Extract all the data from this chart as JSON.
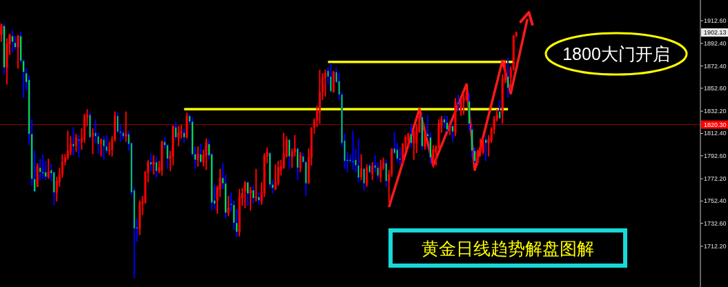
{
  "chart_data": {
    "type": "candlestick",
    "categories": [
      null,
      null,
      null,
      null,
      null,
      null,
      null,
      null,
      null,
      null,
      null,
      null,
      null,
      null,
      null,
      null,
      null,
      null,
      null,
      null,
      null,
      null,
      null,
      null,
      null,
      null,
      null,
      null,
      null,
      null,
      null,
      null,
      null,
      null,
      null,
      null,
      null,
      null,
      null,
      null,
      null,
      null,
      null,
      null,
      null,
      null,
      null,
      null,
      null,
      null,
      null,
      null,
      null,
      null,
      null,
      null,
      null,
      null,
      null,
      null,
      null,
      null,
      null,
      null,
      null,
      null,
      null,
      null,
      null,
      null,
      null,
      null,
      null,
      null,
      null,
      null,
      null,
      null,
      null,
      null,
      null,
      null,
      null,
      null,
      null,
      null,
      null,
      null,
      null,
      null,
      null,
      null,
      null,
      null,
      null,
      null,
      null,
      null,
      null,
      null,
      null,
      null,
      null,
      null,
      null,
      null,
      null,
      null,
      null,
      null,
      null,
      null,
      null,
      null,
      null,
      null,
      null,
      null,
      null,
      null,
      null,
      null,
      null,
      null,
      null,
      null,
      null,
      null,
      null,
      null,
      null,
      null,
      null,
      null,
      null,
      null,
      null,
      null,
      null,
      null,
      null,
      null,
      null,
      null,
      null,
      null,
      null,
      null,
      null,
      null,
      null,
      null,
      null,
      null,
      null,
      null,
      null,
      null,
      null,
      null,
      null,
      null,
      null,
      null,
      null,
      null,
      null,
      null,
      null,
      null,
      null,
      null,
      null,
      null,
      null,
      null,
      null,
      null,
      null,
      null,
      null,
      null,
      null,
      null,
      null,
      null,
      null,
      null,
      null,
      null,
      null,
      null,
      null,
      null,
      null,
      null,
      null,
      null,
      null,
      null,
      null,
      null,
      null,
      null,
      null,
      null,
      null,
      null,
      null,
      null,
      null,
      null,
      null,
      null,
      null,
      null,
      null,
      null,
      null,
      null,
      null,
      null,
      null,
      null,
      null,
      null,
      null,
      null,
      null,
      null,
      null,
      null,
      null,
      null,
      null,
      null,
      null,
      null,
      null,
      null,
      null,
      null,
      null,
      null,
      null,
      null,
      null,
      null,
      null,
      null,
      null,
      null,
      null
    ],
    "ohlc": [
      [
        1900,
        1910,
        1894,
        1909
      ],
      [
        1908,
        1910,
        1865,
        1871
      ],
      [
        1871,
        1897,
        1856,
        1892
      ],
      [
        1892,
        1901,
        1882,
        1900
      ],
      [
        1899,
        1904,
        1884,
        1894
      ],
      [
        1893,
        1899,
        1887,
        1889
      ],
      [
        1889,
        1900,
        1870,
        1899
      ],
      [
        1899,
        1903,
        1875,
        1877
      ],
      [
        1877,
        1878,
        1844,
        1867
      ],
      [
        1866,
        1870,
        1851,
        1858
      ],
      [
        1860,
        1864,
        1802,
        1812
      ],
      [
        1812,
        1825,
        1766,
        1772
      ],
      [
        1772,
        1797,
        1760,
        1761
      ],
      [
        1765,
        1786,
        1765,
        1783
      ],
      [
        1782,
        1790,
        1771,
        1778
      ],
      [
        1778,
        1794,
        1772,
        1777
      ],
      [
        1778,
        1788,
        1771,
        1774
      ],
      [
        1774,
        1790,
        1772,
        1778
      ],
      [
        1780,
        1785,
        1770,
        1777
      ],
      [
        1778,
        1778,
        1749,
        1760
      ],
      [
        1760,
        1774,
        1752,
        1770
      ],
      [
        1769,
        1782,
        1765,
        1776
      ],
      [
        1776,
        1794,
        1773,
        1787
      ],
      [
        1787,
        1794,
        1784,
        1791
      ],
      [
        1791,
        1815,
        1789,
        1797
      ],
      [
        1796,
        1810,
        1793,
        1803
      ],
      [
        1803,
        1818,
        1793,
        1801
      ],
      [
        1802,
        1812,
        1796,
        1808
      ],
      [
        1807,
        1811,
        1791,
        1806
      ],
      [
        1805,
        1817,
        1798,
        1808
      ],
      [
        1807,
        1830,
        1804,
        1828
      ],
      [
        1827,
        1834,
        1819,
        1829
      ],
      [
        1829,
        1832,
        1808,
        1809
      ],
      [
        1810,
        1817,
        1794,
        1813
      ],
      [
        1813,
        1825,
        1804,
        1810
      ],
      [
        1810,
        1813,
        1794,
        1803
      ],
      [
        1803,
        1808,
        1792,
        1807
      ],
      [
        1807,
        1810,
        1789,
        1801
      ],
      [
        1801,
        1811,
        1795,
        1797
      ],
      [
        1797,
        1805,
        1793,
        1798
      ],
      [
        1798,
        1810,
        1792,
        1807
      ],
      [
        1807,
        1832,
        1805,
        1828
      ],
      [
        1828,
        1831,
        1813,
        1814
      ],
      [
        1814,
        1820,
        1805,
        1813
      ],
      [
        1813,
        1815,
        1807,
        1810
      ],
      [
        1810,
        1832,
        1805,
        1812
      ],
      [
        1812,
        1815,
        1797,
        1803
      ],
      [
        1804,
        1804,
        1758,
        1760
      ],
      [
        1762,
        1764,
        1684,
        1728
      ],
      [
        1729,
        1737,
        1716,
        1728
      ],
      [
        1728,
        1753,
        1722,
        1751
      ],
      [
        1750,
        1757,
        1740,
        1752
      ],
      [
        1751,
        1779,
        1750,
        1778
      ],
      [
        1778,
        1789,
        1769,
        1787
      ],
      [
        1787,
        1795,
        1779,
        1785
      ],
      [
        1785,
        1793,
        1776,
        1787
      ],
      [
        1787,
        1792,
        1773,
        1779
      ],
      [
        1779,
        1788,
        1777,
        1782
      ],
      [
        1780,
        1806,
        1775,
        1805
      ],
      [
        1805,
        1809,
        1799,
        1802
      ],
      [
        1802,
        1803,
        1781,
        1790
      ],
      [
        1790,
        1797,
        1779,
        1792
      ],
      [
        1792,
        1819,
        1784,
        1819
      ],
      [
        1818,
        1823,
        1807,
        1809
      ],
      [
        1809,
        1819,
        1801,
        1813
      ],
      [
        1813,
        1820,
        1808,
        1814
      ],
      [
        1813,
        1817,
        1804,
        1809
      ],
      [
        1809,
        1831,
        1808,
        1828
      ],
      [
        1828,
        1830,
        1821,
        1823
      ],
      [
        1823,
        1827,
        1792,
        1794
      ],
      [
        1794,
        1801,
        1781,
        1789
      ],
      [
        1789,
        1801,
        1783,
        1794
      ],
      [
        1794,
        1803,
        1786,
        1787
      ],
      [
        1787,
        1798,
        1783,
        1793
      ],
      [
        1793,
        1808,
        1780,
        1804
      ],
      [
        1803,
        1807,
        1790,
        1793
      ],
      [
        1794,
        1795,
        1744,
        1751
      ],
      [
        1753,
        1767,
        1745,
        1750
      ],
      [
        1753,
        1766,
        1741,
        1764
      ],
      [
        1763,
        1781,
        1756,
        1773
      ],
      [
        1773,
        1786,
        1763,
        1768
      ],
      [
        1768,
        1776,
        1737,
        1742
      ],
      [
        1742,
        1757,
        1739,
        1746
      ],
      [
        1750,
        1760,
        1743,
        1749
      ],
      [
        1749,
        1753,
        1727,
        1733
      ],
      [
        1733,
        1745,
        1720,
        1725
      ],
      [
        1725,
        1763,
        1721,
        1756
      ],
      [
        1755,
        1764,
        1748,
        1759
      ],
      [
        1761,
        1770,
        1746,
        1769
      ],
      [
        1769,
        1770,
        1748,
        1759
      ],
      [
        1759,
        1765,
        1744,
        1762
      ],
      [
        1762,
        1766,
        1750,
        1755
      ],
      [
        1755,
        1781,
        1752,
        1756
      ],
      [
        1756,
        1760,
        1749,
        1753
      ],
      [
        1752,
        1769,
        1749,
        1760
      ],
      [
        1759,
        1795,
        1756,
        1793
      ],
      [
        1792,
        1800,
        1786,
        1796
      ],
      [
        1795,
        1796,
        1764,
        1767
      ],
      [
        1767,
        1771,
        1759,
        1764
      ],
      [
        1763,
        1785,
        1762,
        1769
      ],
      [
        1768,
        1788,
        1766,
        1782
      ],
      [
        1780,
        1789,
        1775,
        1783
      ],
      [
        1782,
        1813,
        1781,
        1794
      ],
      [
        1792,
        1810,
        1791,
        1807
      ],
      [
        1807,
        1807,
        1781,
        1792
      ],
      [
        1792,
        1799,
        1782,
        1796
      ],
      [
        1796,
        1811,
        1792,
        1799
      ],
      [
        1799,
        1800,
        1771,
        1782
      ],
      [
        1782,
        1796,
        1778,
        1793
      ],
      [
        1792,
        1795,
        1786,
        1787
      ],
      [
        1787,
        1788,
        1757,
        1768
      ],
      [
        1768,
        1799,
        1768,
        1791
      ],
      [
        1791,
        1818,
        1784,
        1817
      ],
      [
        1818,
        1826,
        1812,
        1824
      ],
      [
        1824,
        1837,
        1818,
        1832
      ],
      [
        1831,
        1869,
        1821,
        1849
      ],
      [
        1849,
        1866,
        1842,
        1862
      ],
      [
        1862,
        1869,
        1845,
        1866
      ],
      [
        1868,
        1871,
        1856,
        1863
      ],
      [
        1863,
        1875,
        1849,
        1850
      ],
      [
        1849,
        1868,
        1849,
        1867
      ],
      [
        1867,
        1871,
        1857,
        1858
      ],
      [
        1859,
        1866,
        1842,
        1847
      ],
      [
        1847,
        1849,
        1801,
        1804
      ],
      [
        1806,
        1812,
        1781,
        1788
      ],
      [
        1789,
        1796,
        1778,
        1788
      ],
      [
        1789,
        1794,
        1786,
        1788
      ],
      [
        1788,
        1815,
        1780,
        1787
      ],
      [
        1789,
        1799,
        1778,
        1784
      ],
      [
        1784,
        1808,
        1769,
        1773
      ],
      [
        1774,
        1794,
        1771,
        1781
      ],
      [
        1781,
        1782,
        1761,
        1768
      ],
      [
        1767,
        1785,
        1765,
        1782
      ],
      [
        1784,
        1786,
        1777,
        1778
      ],
      [
        1777,
        1787,
        1771,
        1783
      ],
      [
        1784,
        1793,
        1778,
        1782
      ],
      [
        1782,
        1787,
        1772,
        1775
      ],
      [
        1774,
        1789,
        1769,
        1782
      ],
      [
        1782,
        1791,
        1780,
        1786
      ],
      [
        1786,
        1789,
        1765,
        1770
      ],
      [
        1770,
        1780,
        1751,
        1776
      ],
      [
        1777,
        1799,
        1774,
        1799
      ],
      [
        1799,
        1814,
        1794,
        1795
      ],
      [
        1798,
        1804,
        1787,
        1790
      ],
      [
        1790,
        1800,
        1784,
        1789
      ],
      [
        1788,
        1804,
        1785,
        1803
      ],
      [
        1803,
        1811,
        1798,
        1809
      ],
      [
        1807,
        1813,
        1801,
        1812
      ],
      [
        1812,
        1820,
        1800,
        1804
      ],
      [
        1804,
        1815,
        1789,
        1815
      ],
      [
        1804,
        1821,
        1795,
        1817
      ],
      [
        1814,
        1829,
        1813,
        1828
      ],
      [
        1827,
        1829,
        1798,
        1801
      ],
      [
        1801,
        1815,
        1798,
        1814
      ],
      [
        1812,
        1829,
        1809,
        1810
      ],
      [
        1809,
        1813,
        1786,
        1791
      ],
      [
        1791,
        1802,
        1782,
        1798
      ],
      [
        1796,
        1802,
        1784,
        1800
      ],
      [
        1800,
        1825,
        1799,
        1821
      ],
      [
        1820,
        1828,
        1813,
        1825
      ],
      [
        1825,
        1828,
        1817,
        1822
      ],
      [
        1822,
        1828,
        1814,
        1816
      ],
      [
        1817,
        1823,
        1811,
        1819
      ],
      [
        1819,
        1821,
        1805,
        1814
      ],
      [
        1813,
        1844,
        1810,
        1840
      ],
      [
        1840,
        1847,
        1832,
        1839
      ],
      [
        1833,
        1843,
        1828,
        1841
      ],
      [
        1841,
        1848,
        1829,
        1844
      ],
      [
        1843,
        1852,
        1842,
        1848
      ],
      [
        1841,
        1848,
        1815,
        1821
      ],
      [
        1816,
        1819,
        1791,
        1797
      ],
      [
        1797,
        1800,
        1786,
        1788
      ],
      [
        1786,
        1798,
        1784,
        1796
      ],
      [
        1796,
        1808,
        1792,
        1799
      ],
      [
        1796,
        1808,
        1794,
        1804
      ],
      [
        1807,
        1810,
        1788,
        1804
      ],
      [
        1804,
        1811,
        1792,
        1807
      ],
      [
        1806,
        1818,
        1804,
        1816
      ],
      [
        1816,
        1828,
        1812,
        1825
      ],
      [
        1825,
        1834,
        1823,
        1829
      ],
      [
        1832,
        1842,
        1825,
        1826
      ],
      [
        1831,
        1865,
        1821,
        1861
      ],
      [
        1861,
        1878,
        1857,
        1869
      ],
      [
        1863,
        1880,
        1844,
        1853
      ],
      [
        1862,
        1872,
        1851,
        1870
      ],
      [
        1870,
        1900,
        1868,
        1899
      ],
      [
        1899,
        1903,
        1898,
        1902.13
      ],
      null,
      null,
      null,
      null,
      null,
      null,
      null,
      null,
      null,
      null,
      null,
      null,
      null,
      null,
      null,
      null,
      null,
      null,
      null,
      null,
      null,
      null,
      null,
      null,
      null,
      null,
      null,
      null,
      null,
      null,
      null,
      null,
      null,
      null,
      null,
      null,
      null,
      null,
      null,
      null,
      null,
      null,
      null,
      null,
      null,
      null,
      null,
      null,
      null,
      null,
      null,
      null,
      null,
      null,
      null,
      null,
      null,
      null,
      null,
      null,
      null,
      null,
      null,
      null,
      null,
      null
    ],
    "series": [
      {
        "type": "line",
        "color": "#ffff00",
        "values": [
          null,
          null,
          null,
          null,
          null,
          null,
          null,
          null,
          null,
          null,
          null,
          null,
          null,
          null,
          null,
          null,
          null,
          null,
          null,
          null,
          null,
          null,
          null,
          null,
          null,
          null,
          null,
          null,
          null,
          null,
          null,
          null,
          null,
          null,
          null,
          null,
          null,
          null,
          null,
          null,
          null,
          null,
          null,
          null,
          null,
          null,
          null,
          null,
          null,
          null,
          null,
          null,
          null,
          null,
          null,
          null,
          null,
          null,
          null,
          null,
          null,
          null,
          null,
          null,
          null,
          null,
          1834,
          1834,
          1834,
          1834,
          1834,
          1834,
          1834,
          1834,
          1834,
          1834,
          1834,
          1834,
          1834,
          1834,
          1834,
          1834,
          1834,
          1834,
          1834,
          1834,
          1834,
          1834,
          1834,
          1834,
          1834,
          1834,
          1834,
          1834,
          1834,
          1834,
          1834,
          1834,
          1834,
          1834,
          1834,
          1834,
          1834,
          1834,
          1834,
          1834,
          1834,
          1834,
          1834,
          1834,
          1834,
          1834,
          1834,
          1834,
          1834,
          1834,
          1834,
          1834,
          1834,
          1834,
          1834,
          1834,
          1834,
          1834,
          1834,
          1834,
          1834,
          1834,
          1834,
          1834,
          1834,
          1834,
          1834,
          1834,
          1834,
          1834,
          1834,
          1834,
          1834,
          1834,
          1834,
          1834,
          1834,
          1834,
          1834,
          1834,
          1834,
          1834,
          1834,
          1834,
          1834,
          1834,
          1834,
          1834,
          1834,
          1834,
          1834,
          1834,
          1834,
          1834,
          1834,
          1834,
          1834,
          1834,
          1834,
          1834,
          1834,
          1834,
          1834,
          1834,
          1834,
          1834,
          1834,
          1834,
          1834,
          1834,
          1834,
          1834,
          1834,
          1834,
          1834,
          1834,
          1834,
          1834,
          null,
          null,
          null,
          null,
          null,
          null,
          null,
          null,
          null,
          null,
          null,
          null,
          null,
          null,
          null,
          null,
          null,
          null,
          null,
          null,
          null,
          null,
          null,
          null,
          null,
          null,
          null,
          null,
          null,
          null,
          null,
          null,
          null,
          null,
          null,
          null,
          null,
          null,
          null,
          null,
          null,
          null,
          null,
          null,
          null,
          null,
          null,
          null,
          null,
          null,
          null,
          null,
          null,
          null,
          null,
          null,
          null,
          null,
          null,
          null,
          null,
          null,
          null,
          null,
          null,
          null,
          null,
          null,
          null
        ]
      },
      {
        "type": "line",
        "color": "#ffff00",
        "values": [
          null,
          null,
          null,
          null,
          null,
          null,
          null,
          null,
          null,
          null,
          null,
          null,
          null,
          null,
          null,
          null,
          null,
          null,
          null,
          null,
          null,
          null,
          null,
          null,
          null,
          null,
          null,
          null,
          null,
          null,
          null,
          null,
          null,
          null,
          null,
          null,
          null,
          null,
          null,
          null,
          null,
          null,
          null,
          null,
          null,
          null,
          null,
          null,
          null,
          null,
          null,
          null,
          null,
          null,
          null,
          null,
          null,
          null,
          null,
          null,
          null,
          null,
          null,
          null,
          null,
          null,
          null,
          null,
          null,
          null,
          null,
          null,
          null,
          null,
          null,
          null,
          null,
          null,
          null,
          null,
          null,
          null,
          null,
          null,
          null,
          null,
          null,
          null,
          null,
          null,
          null,
          null,
          null,
          null,
          null,
          null,
          null,
          null,
          null,
          null,
          null,
          null,
          null,
          null,
          null,
          null,
          null,
          null,
          null,
          null,
          null,
          null,
          null,
          null,
          null,
          null,
          null,
          null,
          1876,
          1876,
          1876,
          1876,
          1876,
          1876,
          1876,
          1876,
          1876,
          1876,
          1876,
          1876,
          1876,
          1876,
          1876,
          1876,
          1876,
          1876,
          1876,
          1876,
          1876,
          1876,
          1876,
          1876,
          1876,
          1876,
          1876,
          1876,
          1876,
          1876,
          1876,
          1876,
          1876,
          1876,
          1876,
          1876,
          1876,
          1876,
          1876,
          1876,
          1876,
          1876,
          1876,
          1876,
          1876,
          1876,
          1876,
          1876,
          1876,
          1876,
          1876,
          1876,
          1876,
          1876,
          1876,
          1876,
          1876,
          1876,
          1876,
          1876,
          1876,
          1876,
          1876,
          1876,
          1876,
          1876,
          1876,
          1876,
          null,
          null,
          null,
          null,
          null,
          null,
          null,
          null,
          null,
          null,
          null,
          null,
          null,
          null,
          null,
          null,
          null,
          null,
          null,
          null,
          null,
          null,
          null,
          null,
          null,
          null,
          null,
          null,
          null,
          null,
          null,
          null,
          null,
          null,
          null,
          null,
          null,
          null,
          null,
          null,
          null,
          null,
          null,
          null,
          null,
          null,
          null,
          null,
          null,
          null,
          null,
          null,
          null,
          null,
          null,
          null,
          null,
          null,
          null,
          null,
          null,
          null,
          null,
          null,
          null,
          null,
          null
        ]
      },
      {
        "type": "line",
        "color": "#ff1a1a",
        "values": [
          null,
          null,
          null,
          null,
          null,
          null,
          null,
          null,
          null,
          null,
          null,
          null,
          null,
          null,
          null,
          null,
          null,
          null,
          null,
          null,
          null,
          null,
          null,
          null,
          null,
          null,
          null,
          null,
          null,
          null,
          null,
          null,
          null,
          null,
          null,
          null,
          null,
          null,
          null,
          null,
          null,
          null,
          null,
          null,
          null,
          null,
          null,
          null,
          null,
          null,
          null,
          null,
          null,
          null,
          null,
          null,
          null,
          null,
          null,
          null,
          null,
          null,
          null,
          null,
          null,
          null,
          null,
          null,
          null,
          null,
          null,
          null,
          null,
          null,
          null,
          null,
          null,
          null,
          null,
          null,
          null,
          null,
          null,
          null,
          null,
          null,
          null,
          null,
          null,
          null,
          null,
          null,
          null,
          null,
          null,
          null,
          null,
          null,
          null,
          null,
          null,
          null,
          null,
          null,
          null,
          null,
          null,
          null,
          null,
          null,
          null,
          null,
          null,
          null,
          null,
          null,
          null,
          null,
          null,
          null,
          null,
          null,
          null,
          null,
          null,
          null,
          null,
          null,
          null,
          null,
          null,
          null,
          null,
          null,
          null,
          null,
          null,
          null,
          null,
          null,
          1747,
          null,
          null,
          null,
          null,
          null,
          null,
          null,
          null,
          null,
          null,
          1834,
          null,
          null,
          null,
          null,
          1784,
          null,
          null,
          null,
          null,
          null,
          null,
          null,
          null,
          null,
          null,
          null,
          1856,
          null,
          null,
          1780,
          null,
          null,
          null,
          null,
          null,
          null,
          null,
          null,
          null,
          1877,
          null,
          null,
          1848,
          null,
          null,
          null,
          null,
          null,
          1914,
          null,
          null,
          null,
          null,
          null,
          null,
          null,
          null,
          null,
          null,
          null,
          null,
          null,
          null,
          null,
          null,
          null,
          null,
          null,
          null,
          null,
          null,
          null,
          null,
          null,
          null,
          null,
          null,
          null,
          null,
          null,
          null,
          null,
          null,
          null,
          null,
          null,
          null,
          null,
          null,
          null,
          null,
          null,
          null,
          null,
          null,
          null,
          null,
          null,
          null,
          null,
          null,
          null,
          null,
          null,
          null,
          null,
          null,
          null,
          null,
          null,
          null
        ]
      }
    ],
    "ylim": [
      1676,
      1931
    ],
    "yticks": [
      {
        "value": 1912.6,
        "label": "1912.60"
      },
      {
        "value": 1892.4,
        "label": "1892.40"
      },
      {
        "value": 1872.4,
        "label": "1872.40"
      },
      {
        "value": 1852.6,
        "label": "1852.60"
      },
      {
        "value": 1832.2,
        "label": "1832.20"
      },
      {
        "value": 1812.4,
        "label": "1812.40"
      },
      {
        "value": 1792.6,
        "label": "1792.60"
      },
      {
        "value": 1772.2,
        "label": "1772.20"
      },
      {
        "value": 1752.4,
        "label": "1752.40"
      },
      {
        "value": 1732.6,
        "label": "1732.60"
      },
      {
        "value": 1712.2,
        "label": "1712.20"
      }
    ],
    "tick_labels": "y",
    "ref_lines": [
      {
        "axis": "y",
        "value": 1820.3,
        "label": "1820.30",
        "color": "#ff0000"
      }
    ],
    "annotations": [
      {
        "text": "1902.13",
        "y": 1902.13
      },
      "1800大门开启",
      "黄金日线趋势解盘图解"
    ]
  }
}
